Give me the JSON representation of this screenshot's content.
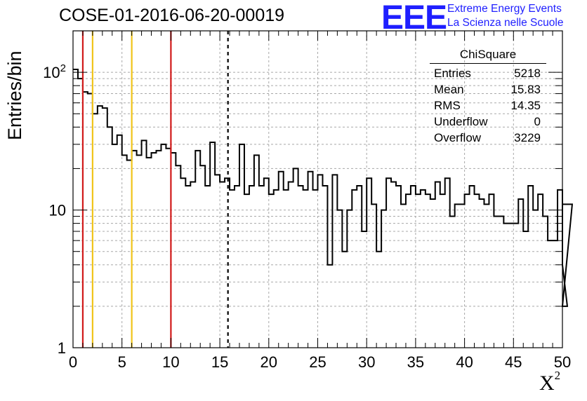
{
  "title": "COSE-01-2016-06-20-00019",
  "logo": {
    "mark": "EEE",
    "line1": "Extreme Energy Events",
    "line2": "La Scienza nelle Scuole",
    "color": "#1f1fff"
  },
  "stats_box": {
    "name": "ChiSquare",
    "rows": [
      {
        "label": "Entries",
        "value": "5218"
      },
      {
        "label": "Mean",
        "value": "15.83"
      },
      {
        "label": "RMS",
        "value": "14.35"
      },
      {
        "label": "Underflow",
        "value": "0"
      },
      {
        "label": "Overflow",
        "value": "3229"
      }
    ]
  },
  "chart_data": {
    "type": "histogram",
    "title": "COSE-01-2016-06-20-00019",
    "xlabel": "X",
    "xlabel_superscript": "2",
    "ylabel": "Entries/bin",
    "xlim": [
      0,
      50
    ],
    "ylim": [
      1,
      200
    ],
    "y_scale": "log",
    "grid": true,
    "x_ticks": [
      0,
      5,
      10,
      15,
      20,
      25,
      30,
      35,
      40,
      45,
      50
    ],
    "x_tick_labels": [
      "0",
      "5",
      "10",
      "15",
      "20",
      "25",
      "30",
      "35",
      "40",
      "45",
      "50"
    ],
    "y_tick_labels": [
      {
        "value": 1,
        "base": "1",
        "exp": ""
      },
      {
        "value": 10,
        "base": "10",
        "exp": ""
      },
      {
        "value": 100,
        "base": "10",
        "exp": "2"
      }
    ],
    "bin_width": 0.5,
    "bin_counts": [
      105,
      90,
      72,
      70,
      50,
      57,
      55,
      40,
      30,
      35,
      25,
      23,
      27,
      25,
      32,
      24,
      26,
      27,
      30,
      28,
      26,
      21,
      17,
      15,
      16,
      27,
      21,
      15,
      31,
      18,
      16,
      17,
      14,
      15,
      30,
      13,
      15,
      25,
      15,
      17,
      13,
      14,
      19,
      14,
      16,
      20,
      15,
      14,
      19,
      14,
      18,
      15,
      4,
      18,
      10,
      5,
      10,
      14,
      15,
      7,
      17,
      11,
      5,
      10,
      17,
      16,
      15,
      11,
      13,
      15,
      13,
      14,
      13,
      12,
      16,
      13,
      17,
      9,
      11,
      11,
      13,
      15,
      13,
      12,
      11,
      13,
      9,
      9,
      8,
      8,
      8,
      12,
      7,
      15,
      10,
      13,
      9,
      6,
      6,
      14,
      4,
      2,
      11
    ],
    "vlines": [
      {
        "x": 1,
        "color": "#d11a1a",
        "style": "solid"
      },
      {
        "x": 2,
        "color": "#f0c419",
        "style": "solid"
      },
      {
        "x": 6,
        "color": "#f0c419",
        "style": "solid"
      },
      {
        "x": 10,
        "color": "#d11a1a",
        "style": "solid"
      },
      {
        "x": 15.83,
        "color": "#000000",
        "style": "dashed"
      }
    ]
  }
}
